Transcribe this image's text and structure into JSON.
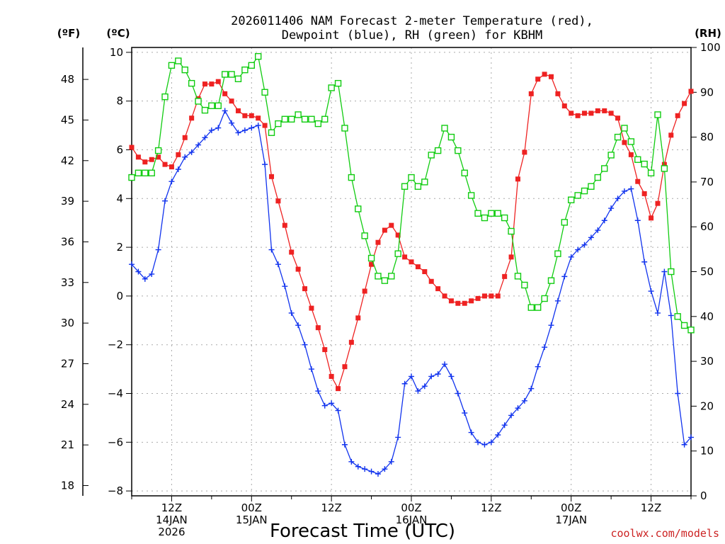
{
  "chart_data": {
    "type": "line",
    "title_lines": [
      "2026011406 NAM Forecast 2-meter Temperature (red),",
      "Dewpoint (blue), RH (green) for KBHM"
    ],
    "xlabel": "Forecast Time (UTC)",
    "credit": "coolwx.com/models",
    "unit_labels": {
      "fahrenheit": "(ºF)",
      "celsius": "(ºC)",
      "rh": "(RH)"
    },
    "x_start_hour": 6,
    "x_end_hour": 90,
    "x_range_note_hours": "forecast hours since 2026-01-14 00Z are the x values",
    "x_ticks": [
      {
        "hour": 12,
        "lines": [
          "12Z",
          "14JAN",
          "2026"
        ]
      },
      {
        "hour": 24,
        "lines": [
          "00Z",
          "15JAN"
        ]
      },
      {
        "hour": 36,
        "lines": [
          "12Z"
        ]
      },
      {
        "hour": 48,
        "lines": [
          "00Z",
          "16JAN"
        ]
      },
      {
        "hour": 60,
        "lines": [
          "12Z"
        ]
      },
      {
        "hour": 72,
        "lines": [
          "00Z",
          "17JAN"
        ]
      },
      {
        "hour": 84,
        "lines": [
          "12Z"
        ]
      }
    ],
    "celsius_axis": {
      "ylim": [
        -8.2,
        10.2
      ],
      "ticks": [
        "10",
        "8",
        "6",
        "4",
        "2",
        "0",
        "−2",
        "−4",
        "−6",
        "−8"
      ]
    },
    "fahrenheit_axis": {
      "ticks": [
        "48",
        "45",
        "42",
        "39",
        "36",
        "33",
        "30",
        "27",
        "24",
        "21",
        "18"
      ]
    },
    "rh_axis": {
      "ylim": [
        0,
        100
      ],
      "ticks": [
        "100",
        "90",
        "80",
        "70",
        "60",
        "50",
        "40",
        "30",
        "20",
        "10",
        "0"
      ]
    },
    "grid": true,
    "colors": {
      "temperature": "#ee2222",
      "dewpoint": "#1133ee",
      "rh": "#11cc11",
      "credit": "#cc2222"
    },
    "series": [
      {
        "name": "Temperature (red)",
        "axis": "celsius",
        "marker": "square",
        "x": [
          6,
          7,
          8,
          9,
          10,
          11,
          12,
          13,
          14,
          15,
          16,
          17,
          18,
          19,
          20,
          21,
          22,
          23,
          24,
          25,
          26,
          27,
          28,
          29,
          30,
          31,
          32,
          33,
          34,
          35,
          36,
          37,
          38,
          39,
          40,
          41,
          42,
          43,
          44,
          45,
          46,
          47,
          48,
          49,
          50,
          51,
          52,
          53,
          54,
          55,
          56,
          57,
          58,
          59,
          60,
          61,
          62,
          63,
          64,
          65,
          66,
          67,
          68,
          69,
          70,
          71,
          72,
          73,
          74,
          75,
          76,
          77,
          78,
          79,
          80,
          81,
          82,
          83,
          84,
          85,
          86,
          87,
          88,
          89,
          90
        ],
        "values": [
          6.1,
          5.7,
          5.5,
          5.6,
          5.7,
          5.4,
          5.3,
          5.8,
          6.5,
          7.3,
          8.1,
          8.7,
          8.7,
          8.8,
          8.3,
          8.0,
          7.6,
          7.4,
          7.4,
          7.3,
          7.0,
          4.9,
          3.9,
          2.9,
          1.8,
          1.1,
          0.3,
          -0.5,
          -1.3,
          -2.2,
          -3.3,
          -3.8,
          -2.9,
          -1.9,
          -0.9,
          0.2,
          1.3,
          2.2,
          2.7,
          2.9,
          2.5,
          1.6,
          1.4,
          1.2,
          1.0,
          0.6,
          0.3,
          0.0,
          -0.2,
          -0.3,
          -0.3,
          -0.2,
          -0.1,
          0.0,
          0.0,
          0.0,
          0.8,
          1.6,
          4.8,
          5.9,
          8.3,
          8.9,
          9.1,
          9.0,
          8.3,
          7.8,
          7.5,
          7.4,
          7.5,
          7.5,
          7.6,
          7.6,
          7.5,
          7.3,
          6.3,
          5.8,
          4.7,
          4.2,
          3.2,
          3.8,
          5.4,
          6.6,
          7.4,
          7.9,
          8.4
        ]
      },
      {
        "name": "Dewpoint (blue)",
        "axis": "celsius",
        "marker": "cross",
        "x": [
          6,
          7,
          8,
          9,
          10,
          11,
          12,
          13,
          14,
          15,
          16,
          17,
          18,
          19,
          20,
          21,
          22,
          23,
          24,
          25,
          26,
          27,
          28,
          29,
          30,
          31,
          32,
          33,
          34,
          35,
          36,
          37,
          38,
          39,
          40,
          41,
          42,
          43,
          44,
          45,
          46,
          47,
          48,
          49,
          50,
          51,
          52,
          53,
          54,
          55,
          56,
          57,
          58,
          59,
          60,
          61,
          62,
          63,
          64,
          65,
          66,
          67,
          68,
          69,
          70,
          71,
          72,
          73,
          74,
          75,
          76,
          77,
          78,
          79,
          80,
          81,
          82,
          83,
          84,
          85,
          86,
          87,
          88,
          89,
          90
        ],
        "values": [
          1.3,
          1.0,
          0.7,
          0.9,
          1.9,
          3.9,
          4.7,
          5.2,
          5.7,
          5.9,
          6.2,
          6.5,
          6.8,
          6.9,
          7.6,
          7.1,
          6.7,
          6.8,
          6.9,
          7.0,
          5.4,
          1.9,
          1.3,
          0.4,
          -0.7,
          -1.2,
          -2.0,
          -3.0,
          -3.9,
          -4.5,
          -4.4,
          -4.7,
          -6.1,
          -6.8,
          -7.0,
          -7.1,
          -7.2,
          -7.3,
          -7.1,
          -6.8,
          -5.8,
          -3.6,
          -3.3,
          -3.9,
          -3.7,
          -3.3,
          -3.2,
          -2.8,
          -3.3,
          -4.0,
          -4.8,
          -5.6,
          -6.0,
          -6.1,
          -6.0,
          -5.7,
          -5.3,
          -4.9,
          -4.6,
          -4.3,
          -3.8,
          -2.9,
          -2.1,
          -1.2,
          -0.2,
          0.8,
          1.6,
          1.9,
          2.1,
          2.4,
          2.7,
          3.1,
          3.6,
          4.0,
          4.3,
          4.4,
          3.1,
          1.4,
          0.2,
          -0.7,
          1.0,
          -0.8,
          -4.0,
          -6.1,
          -5.8
        ]
      },
      {
        "name": "RH (green)",
        "axis": "rh",
        "marker": "open-square",
        "x": [
          6,
          7,
          8,
          9,
          10,
          11,
          12,
          13,
          14,
          15,
          16,
          17,
          18,
          19,
          20,
          21,
          22,
          23,
          24,
          25,
          26,
          27,
          28,
          29,
          30,
          31,
          32,
          33,
          34,
          35,
          36,
          37,
          38,
          39,
          40,
          41,
          42,
          43,
          44,
          45,
          46,
          47,
          48,
          49,
          50,
          51,
          52,
          53,
          54,
          55,
          56,
          57,
          58,
          59,
          60,
          61,
          62,
          63,
          64,
          65,
          66,
          67,
          68,
          69,
          70,
          71,
          72,
          73,
          74,
          75,
          76,
          77,
          78,
          79,
          80,
          81,
          82,
          83,
          84,
          85,
          86,
          87,
          88,
          89,
          90
        ],
        "values": [
          71,
          72,
          72,
          72,
          77,
          89,
          96,
          97,
          95,
          92,
          88,
          86,
          87,
          87,
          94,
          94,
          93,
          95,
          96,
          98,
          90,
          81,
          83,
          84,
          84,
          85,
          84,
          84,
          83,
          84,
          91,
          92,
          82,
          71,
          64,
          58,
          53,
          49,
          48,
          49,
          54,
          69,
          71,
          69,
          70,
          76,
          77,
          82,
          80,
          77,
          72,
          67,
          63,
          62,
          63,
          63,
          62,
          59,
          49,
          47,
          42,
          42,
          44,
          48,
          54,
          61,
          66,
          67,
          68,
          69,
          71,
          73,
          76,
          80,
          82,
          79,
          75,
          74,
          72,
          85,
          73,
          50,
          40,
          38,
          37
        ]
      }
    ]
  }
}
